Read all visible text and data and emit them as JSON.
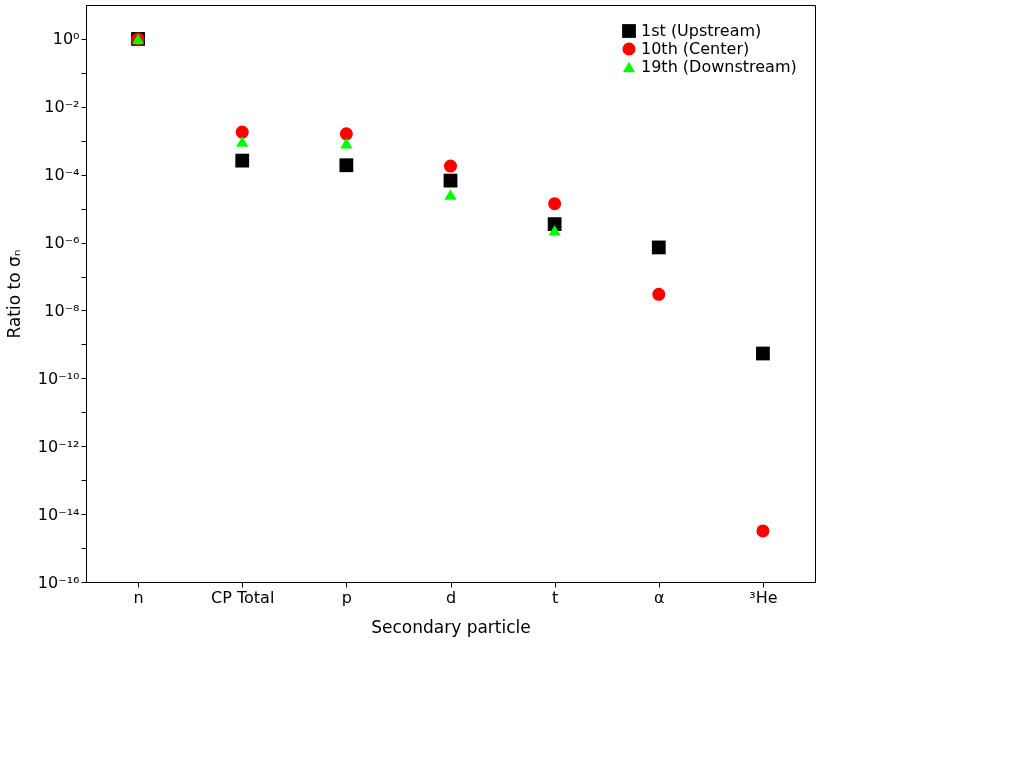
{
  "chart_data": {
    "type": "scatter",
    "xlabel": "Secondary particle",
    "ylabel": "Ratio to σₙ",
    "categories": [
      "n",
      "CP Total",
      "p",
      "d",
      "t",
      "α",
      "³He"
    ],
    "series": [
      {
        "name": "1st (Upstream)",
        "color": "#000000",
        "marker": "square",
        "values": [
          1,
          0.00026,
          0.00019,
          6.7e-05,
          3.5e-06,
          7.2e-07,
          5.4e-10
        ]
      },
      {
        "name": "10th (Center)",
        "color": "#ff0000",
        "marker": "circle",
        "values": [
          1,
          0.0018,
          0.0016,
          0.00018,
          1.4e-05,
          3e-08,
          3.2e-15
        ]
      },
      {
        "name": "19th (Downstream)",
        "color": "#00ff00",
        "marker": "triangle",
        "values": [
          1,
          0.00095,
          0.00085,
          2.6e-05,
          2.3e-06,
          null,
          null
        ]
      }
    ],
    "log": "y",
    "ylim": [
      1e-16,
      10
    ],
    "yticks": [
      {
        "value": 1e-16,
        "label": "10⁻¹⁶"
      },
      {
        "value": 1e-15,
        "label": null
      },
      {
        "value": 1e-14,
        "label": "10⁻¹⁴"
      },
      {
        "value": 1e-13,
        "label": null
      },
      {
        "value": 1e-12,
        "label": "10⁻¹²"
      },
      {
        "value": 1e-11,
        "label": null
      },
      {
        "value": 1e-10,
        "label": "10⁻¹⁰"
      },
      {
        "value": 1e-09,
        "label": null
      },
      {
        "value": 1e-08,
        "label": "10⁻⁸"
      },
      {
        "value": 1e-07,
        "label": null
      },
      {
        "value": 1e-06,
        "label": "10⁻⁶"
      },
      {
        "value": 1e-05,
        "label": null
      },
      {
        "value": 0.0001,
        "label": "10⁻⁴"
      },
      {
        "value": 0.001,
        "label": null
      },
      {
        "value": 0.01,
        "label": "10⁻²"
      },
      {
        "value": 0.1,
        "label": null
      },
      {
        "value": 1,
        "label": "10⁰"
      }
    ],
    "grid": false,
    "legend": "top right"
  }
}
